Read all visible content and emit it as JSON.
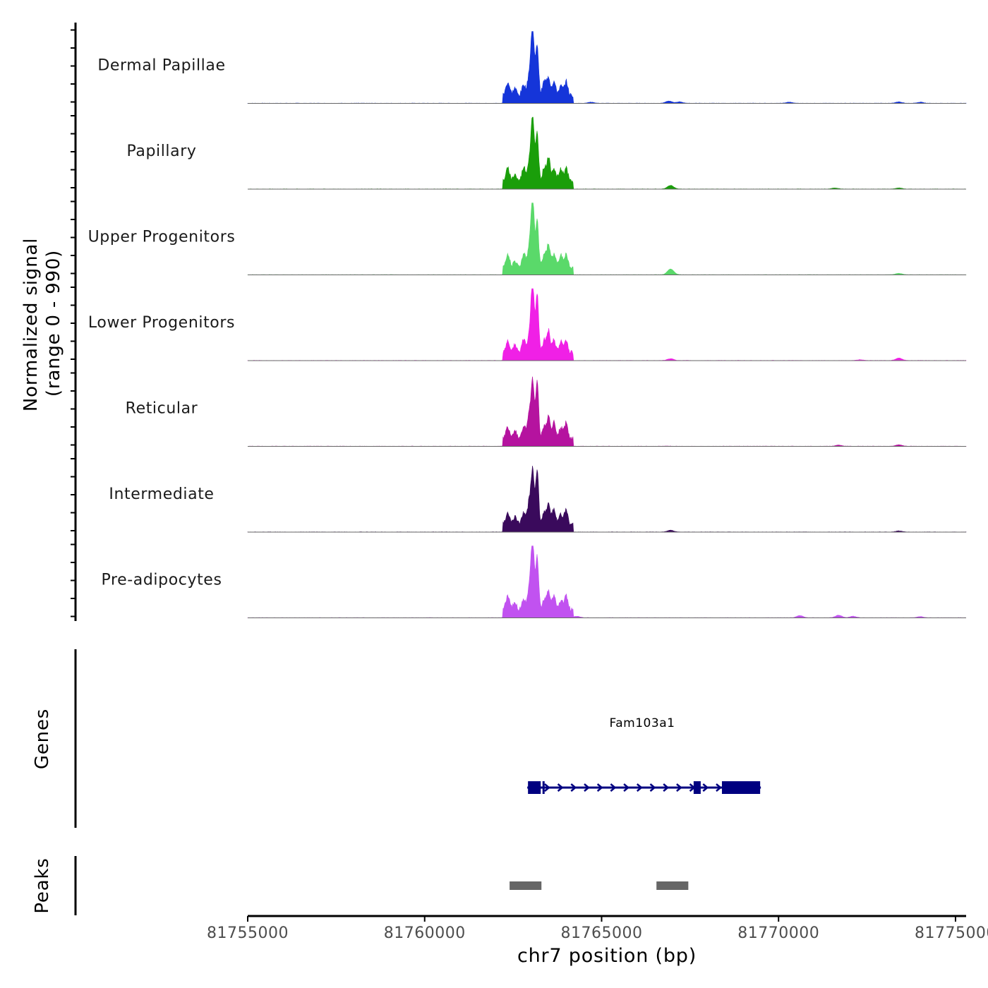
{
  "chart_data": {
    "type": "area",
    "title": "",
    "y_axis_label_line1": "Normalized signal",
    "y_axis_label_line2": "(range 0 - 990)",
    "y_range": [
      0,
      990
    ],
    "xlabel": "chr7 position (bp)",
    "x_range": [
      81755000,
      81775300
    ],
    "x_ticks": [
      81755000,
      81760000,
      81765000,
      81770000,
      81775000
    ],
    "x_tick_labels": [
      "81755000",
      "81760000",
      "81765000",
      "81770000",
      "81775000"
    ],
    "tracks": [
      {
        "name": "Dermal Papillae",
        "color": "#1535d9",
        "main_scale": 1.0,
        "minor": [
          [
            81764700,
            0.015
          ],
          [
            81766900,
            0.03
          ],
          [
            81767200,
            0.02
          ],
          [
            81770300,
            0.015
          ],
          [
            81773400,
            0.02
          ],
          [
            81774000,
            0.015
          ]
        ]
      },
      {
        "name": "Papillary",
        "color": "#1a9e0a",
        "main_scale": 0.92,
        "minor": [
          [
            81766950,
            0.05
          ],
          [
            81771600,
            0.015
          ],
          [
            81773400,
            0.015
          ]
        ]
      },
      {
        "name": "Upper Progenitors",
        "color": "#5ad96a",
        "main_scale": 1.05,
        "minor": [
          [
            81766950,
            0.08
          ],
          [
            81773400,
            0.02
          ]
        ]
      },
      {
        "name": "Lower Progenitors",
        "color": "#f020e6",
        "main_scale": 1.02,
        "minor": [
          [
            81766950,
            0.025
          ],
          [
            81773400,
            0.035
          ],
          [
            81772300,
            0.01
          ]
        ]
      },
      {
        "name": "Reticular",
        "color": "#b5139f",
        "main_scale": 0.8,
        "minor": [
          [
            81771700,
            0.015
          ],
          [
            81773400,
            0.02
          ]
        ]
      },
      {
        "name": "Intermediate",
        "color": "#3a0a5c",
        "main_scale": 0.75,
        "minor": [
          [
            81766950,
            0.025
          ],
          [
            81773400,
            0.015
          ]
        ]
      },
      {
        "name": "Pre-adipocytes",
        "color": "#c152f0",
        "main_scale": 1.1,
        "minor": [
          [
            81764300,
            0.02
          ],
          [
            81770600,
            0.03
          ],
          [
            81771700,
            0.035
          ],
          [
            81772100,
            0.02
          ],
          [
            81774000,
            0.015
          ]
        ]
      }
    ],
    "main_peaks": [
      [
        81762350,
        0.17,
        55
      ],
      [
        81762550,
        0.11,
        45
      ],
      [
        81762800,
        0.18,
        50
      ],
      [
        81762950,
        0.28,
        45
      ],
      [
        81763050,
        1.0,
        45
      ],
      [
        81763180,
        0.75,
        40
      ],
      [
        81763380,
        0.18,
        50
      ],
      [
        81763500,
        0.3,
        45
      ],
      [
        81763650,
        0.2,
        50
      ],
      [
        81763850,
        0.15,
        55
      ],
      [
        81764000,
        0.2,
        45
      ]
    ],
    "main_region": [
      81762200,
      81764200
    ],
    "genes": [
      {
        "name": "Fam103a1",
        "color": "#000080",
        "strand": "+",
        "start": 81762900,
        "end": 81769500,
        "exons": [
          [
            81762920,
            81763280
          ],
          [
            81763330,
            81763370
          ],
          [
            81767600,
            81767800
          ],
          [
            81768400,
            81769480
          ]
        ]
      }
    ],
    "genes_track_label": "Genes",
    "peaks_track_label": "Peaks",
    "peaks": [
      [
        81762400,
        81763300
      ],
      [
        81766550,
        81767450
      ]
    ],
    "peaks_color": "#666666"
  }
}
